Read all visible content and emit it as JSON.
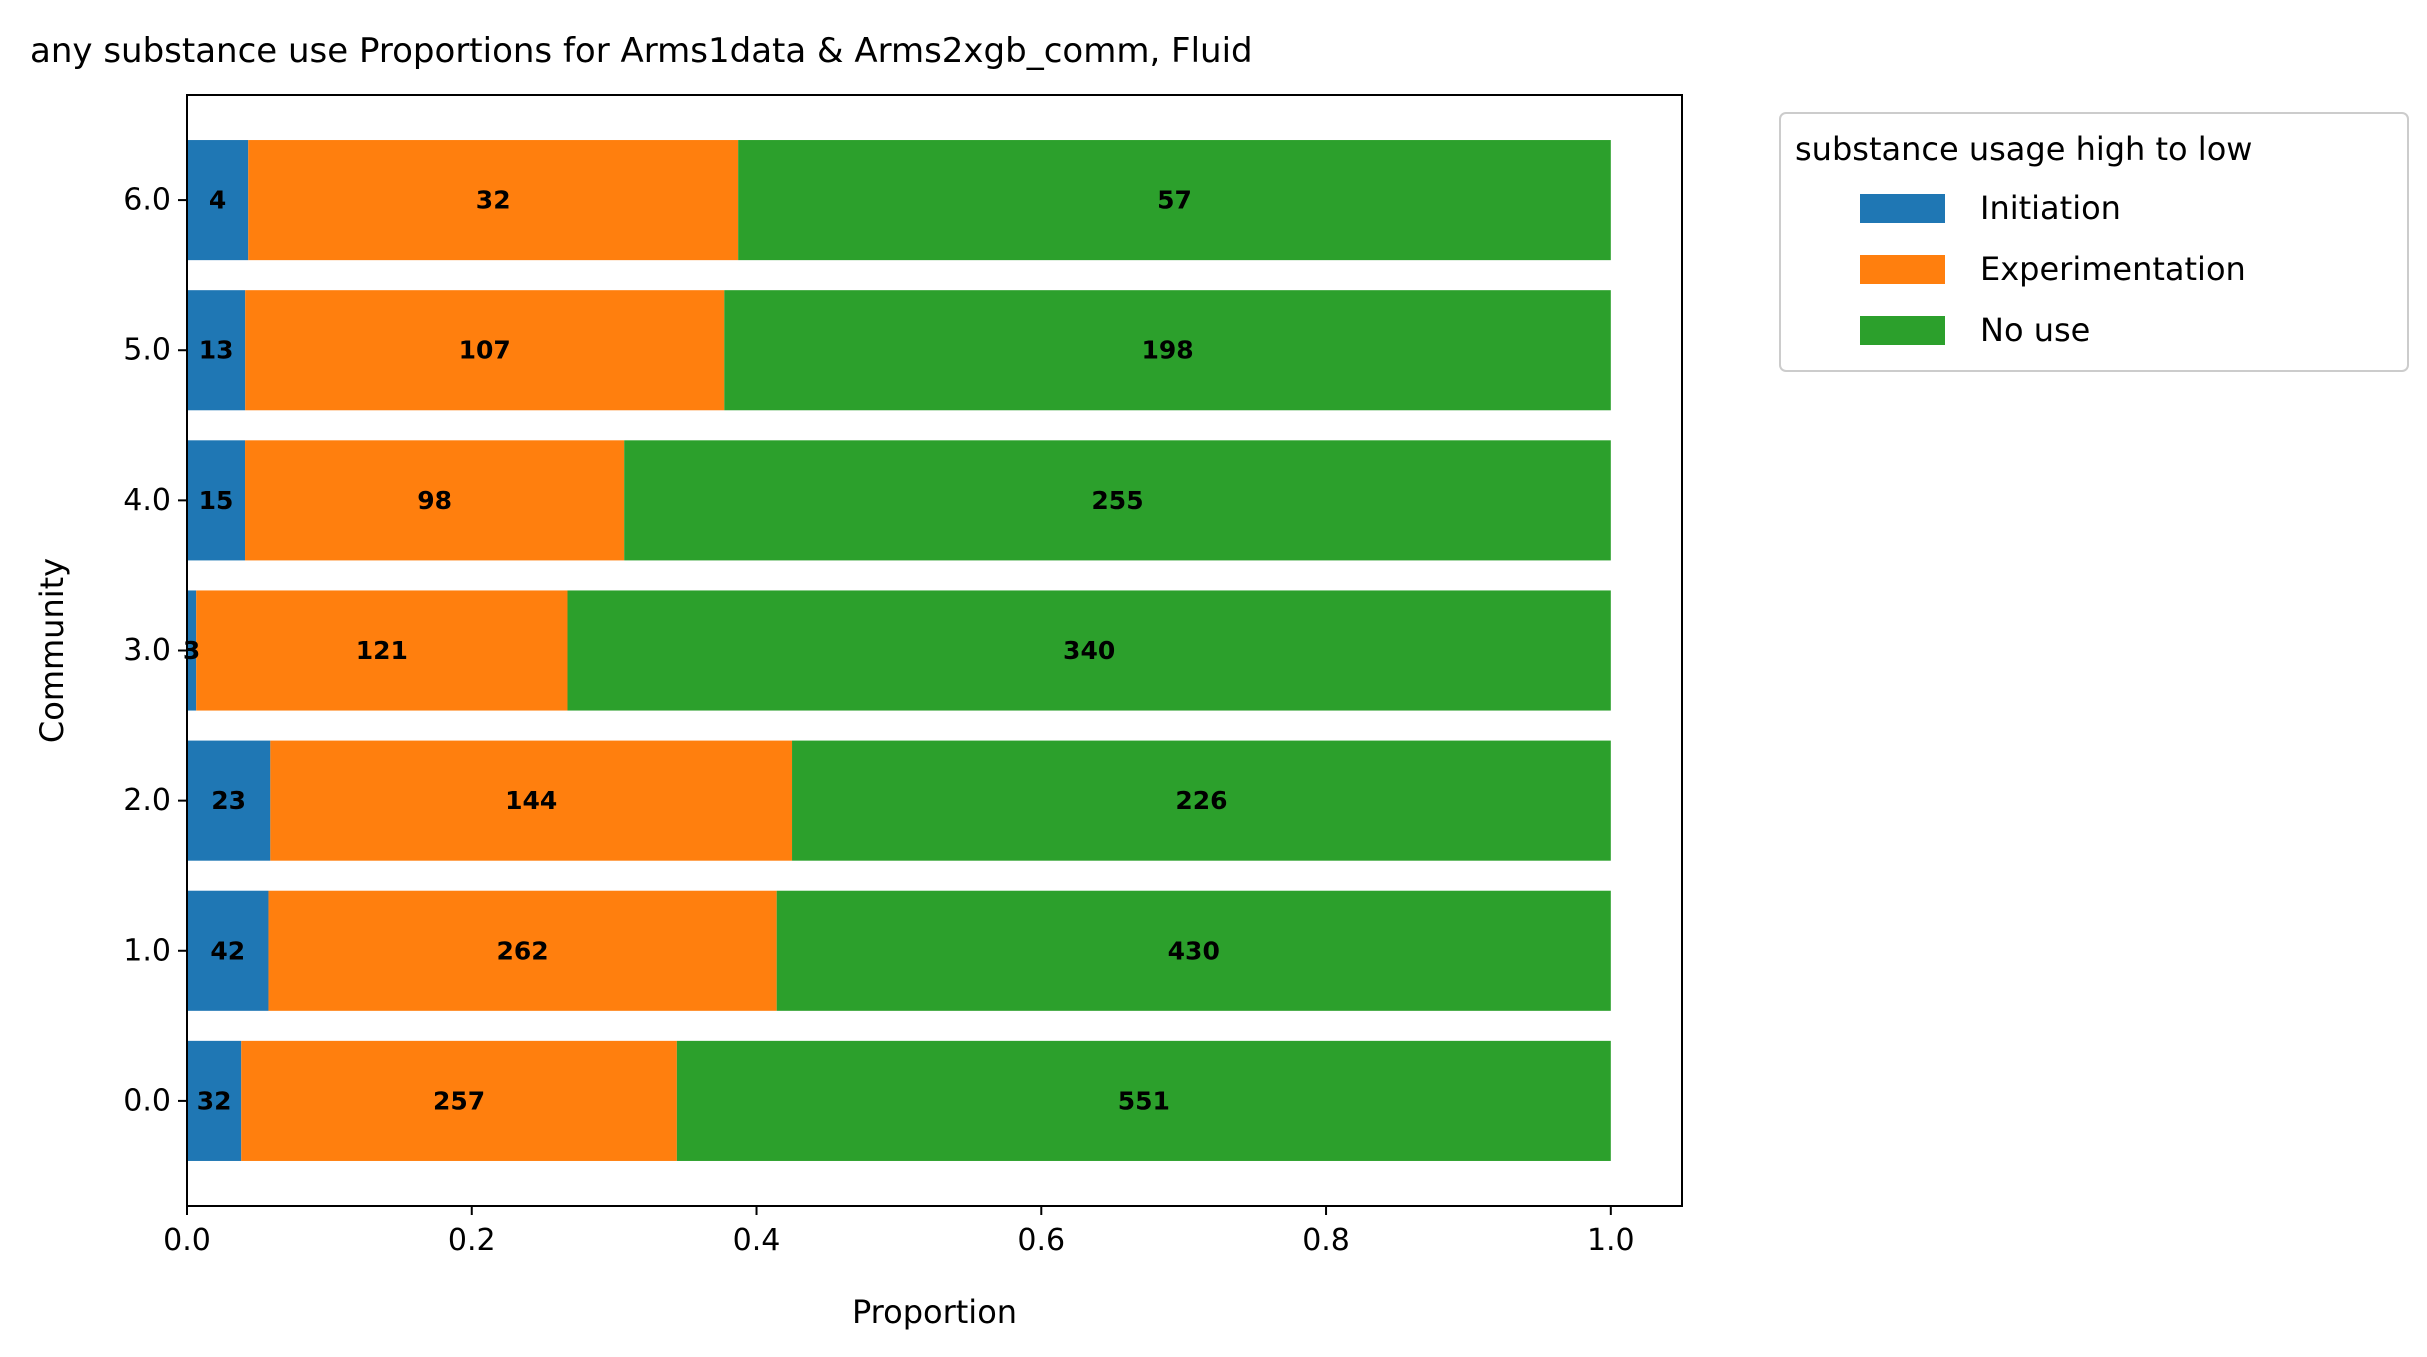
{
  "chart_data": {
    "type": "bar",
    "orientation": "horizontal",
    "stacked": true,
    "title": "any substance use Proportions for Arms1data & Arms2xgb_comm, Fluid",
    "xlabel": "Proportion",
    "ylabel": "Community",
    "xlim": [
      0,
      1.05
    ],
    "xticks": [
      "0.0",
      "0.2",
      "0.4",
      "0.6",
      "0.8",
      "1.0"
    ],
    "categories": [
      "0.0",
      "1.0",
      "2.0",
      "3.0",
      "4.0",
      "5.0",
      "6.0"
    ],
    "legend": {
      "title": "substance usage high to low",
      "placement": "outside-top-right"
    },
    "grid": false,
    "series": [
      {
        "name": "Initiation",
        "color": "#1f77b4",
        "counts": [
          32,
          42,
          23,
          3,
          15,
          13,
          4
        ]
      },
      {
        "name": "Experimentation",
        "color": "#ff7f0e",
        "counts": [
          257,
          262,
          144,
          121,
          98,
          107,
          32
        ]
      },
      {
        "name": "No use",
        "color": "#2ca02c",
        "counts": [
          551,
          430,
          226,
          340,
          255,
          198,
          57
        ]
      }
    ]
  }
}
